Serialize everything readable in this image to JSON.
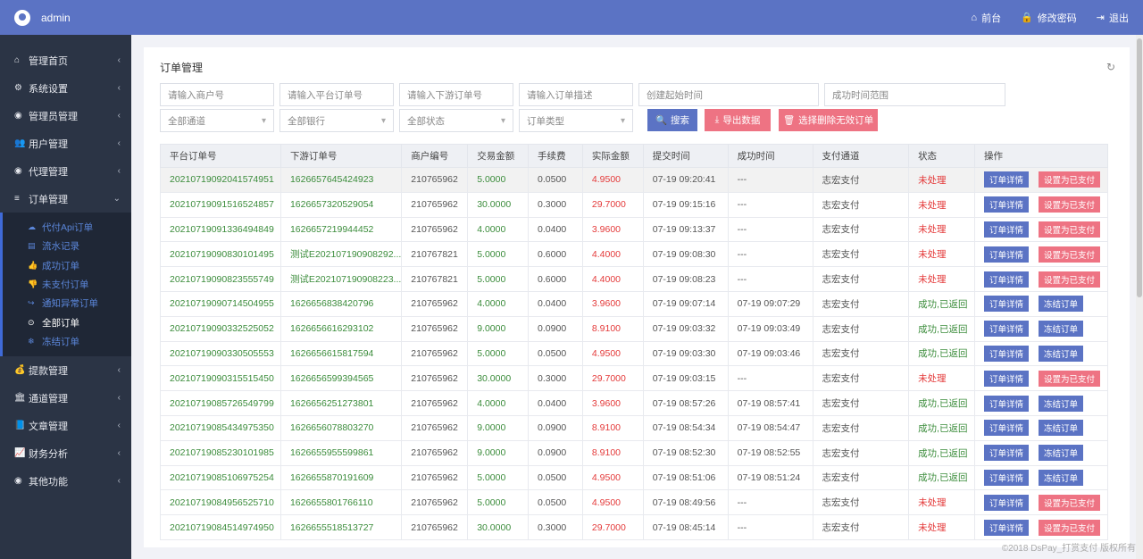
{
  "topbar": {
    "username": "admin",
    "nav": [
      {
        "icon": "home-icon",
        "glyph": "⌂",
        "label": "前台"
      },
      {
        "icon": "lock-icon",
        "glyph": "🔒",
        "label": "修改密码"
      },
      {
        "icon": "logout-icon",
        "glyph": "⇥",
        "label": "退出"
      }
    ]
  },
  "sidebar": {
    "items": [
      {
        "label": "管理首页",
        "glyph": "⌂"
      },
      {
        "label": "系统设置",
        "glyph": "⚙"
      },
      {
        "label": "管理员管理",
        "glyph": "◉"
      },
      {
        "label": "用户管理",
        "glyph": "👥"
      },
      {
        "label": "代理管理",
        "glyph": "◉"
      },
      {
        "label": "订单管理",
        "glyph": "≡"
      }
    ],
    "submenu": [
      {
        "label": "代付Api订单",
        "glyph": "☁"
      },
      {
        "label": "流水记录",
        "glyph": "▤"
      },
      {
        "label": "成功订单",
        "glyph": "👍"
      },
      {
        "label": "未支付订单",
        "glyph": "👎"
      },
      {
        "label": "通知异常订单",
        "glyph": "↪"
      },
      {
        "label": "全部订单",
        "glyph": "⊙"
      },
      {
        "label": "冻结订单",
        "glyph": "❄"
      }
    ],
    "items_after": [
      {
        "label": "提款管理",
        "glyph": "💰"
      },
      {
        "label": "通道管理",
        "glyph": "🏛"
      },
      {
        "label": "文章管理",
        "glyph": "📘"
      },
      {
        "label": "财务分析",
        "glyph": "📈"
      },
      {
        "label": "其他功能",
        "glyph": "◉"
      }
    ]
  },
  "page": {
    "title": "订单管理",
    "filters": {
      "merchant_no": "请输入商户号",
      "platform_order": "请输入平台订单号",
      "downstream_order": "请输入下游订单号",
      "order_desc": "请输入订单描述",
      "create_time": "创建起始时间",
      "success_time": "成功时间范围",
      "channel": "全部通道",
      "bank": "全部银行",
      "status": "全部状态",
      "order_type": "订单类型"
    },
    "buttons": {
      "search": "搜索",
      "export": "导出数据",
      "delete_invalid": "选择删除无效订单"
    }
  },
  "table": {
    "headers": [
      "平台订单号",
      "下游订单号",
      "商户编号",
      "交易金额",
      "手续费",
      "实际金额",
      "提交时间",
      "成功时间",
      "支付通道",
      "状态",
      "操作"
    ],
    "rows": [
      [
        "20210719092041574951",
        "1626657645424923",
        "210765962",
        "5.0000",
        "0.0500",
        "4.9500",
        "07-19 09:20:41",
        "---",
        "志宏支付",
        "未处理",
        "订单详情",
        "设置为已支付"
      ],
      [
        "20210719091516524857",
        "1626657320529054",
        "210765962",
        "30.0000",
        "0.3000",
        "29.7000",
        "07-19 09:15:16",
        "---",
        "志宏支付",
        "未处理",
        "订单详情",
        "设置为已支付"
      ],
      [
        "20210719091336494849",
        "1626657219944452",
        "210765962",
        "4.0000",
        "0.0400",
        "3.9600",
        "07-19 09:13:37",
        "---",
        "志宏支付",
        "未处理",
        "订单详情",
        "设置为已支付"
      ],
      [
        "20210719090830101495",
        "测试E202107190908292...",
        "210767821",
        "5.0000",
        "0.6000",
        "4.4000",
        "07-19 09:08:30",
        "---",
        "志宏支付",
        "未处理",
        "订单详情",
        "设置为已支付"
      ],
      [
        "20210719090823555749",
        "测试E202107190908223...",
        "210767821",
        "5.0000",
        "0.6000",
        "4.4000",
        "07-19 09:08:23",
        "---",
        "志宏支付",
        "未处理",
        "订单详情",
        "设置为已支付"
      ],
      [
        "20210719090714504955",
        "1626656838420796",
        "210765962",
        "4.0000",
        "0.0400",
        "3.9600",
        "07-19 09:07:14",
        "07-19 09:07:29",
        "志宏支付",
        "成功,已返回",
        "订单详情",
        "冻结订单"
      ],
      [
        "20210719090332525052",
        "1626656616293102",
        "210765962",
        "9.0000",
        "0.0900",
        "8.9100",
        "07-19 09:03:32",
        "07-19 09:03:49",
        "志宏支付",
        "成功,已返回",
        "订单详情",
        "冻结订单"
      ],
      [
        "20210719090330505553",
        "1626656615817594",
        "210765962",
        "5.0000",
        "0.0500",
        "4.9500",
        "07-19 09:03:30",
        "07-19 09:03:46",
        "志宏支付",
        "成功,已返回",
        "订单详情",
        "冻结订单"
      ],
      [
        "20210719090315515450",
        "1626656599394565",
        "210765962",
        "30.0000",
        "0.3000",
        "29.7000",
        "07-19 09:03:15",
        "---",
        "志宏支付",
        "未处理",
        "订单详情",
        "设置为已支付"
      ],
      [
        "20210719085726549799",
        "1626656251273801",
        "210765962",
        "4.0000",
        "0.0400",
        "3.9600",
        "07-19 08:57:26",
        "07-19 08:57:41",
        "志宏支付",
        "成功,已返回",
        "订单详情",
        "冻结订单"
      ],
      [
        "20210719085434975350",
        "1626656078803270",
        "210765962",
        "9.0000",
        "0.0900",
        "8.9100",
        "07-19 08:54:34",
        "07-19 08:54:47",
        "志宏支付",
        "成功,已返回",
        "订单详情",
        "冻结订单"
      ],
      [
        "20210719085230101985",
        "1626655955599861",
        "210765962",
        "9.0000",
        "0.0900",
        "8.9100",
        "07-19 08:52:30",
        "07-19 08:52:55",
        "志宏支付",
        "成功,已返回",
        "订单详情",
        "冻结订单"
      ],
      [
        "20210719085106975254",
        "1626655870191609",
        "210765962",
        "5.0000",
        "0.0500",
        "4.9500",
        "07-19 08:51:06",
        "07-19 08:51:24",
        "志宏支付",
        "成功,已返回",
        "订单详情",
        "冻结订单"
      ],
      [
        "20210719084956525710",
        "1626655801766110",
        "210765962",
        "5.0000",
        "0.0500",
        "4.9500",
        "07-19 08:49:56",
        "---",
        "志宏支付",
        "未处理",
        "订单详情",
        "设置为已支付"
      ],
      [
        "20210719084514974950",
        "1626655518513727",
        "210765962",
        "30.0000",
        "0.3000",
        "29.7000",
        "07-19 08:45:14",
        "---",
        "志宏支付",
        "未处理",
        "订单详情",
        "设置为已支付"
      ]
    ]
  },
  "footer": "©2018 DsPay_打赏支付 版权所有",
  "colors": {
    "accent": "#5b73c4",
    "danger": "#ee7383",
    "sidebar": "#2b3445"
  }
}
